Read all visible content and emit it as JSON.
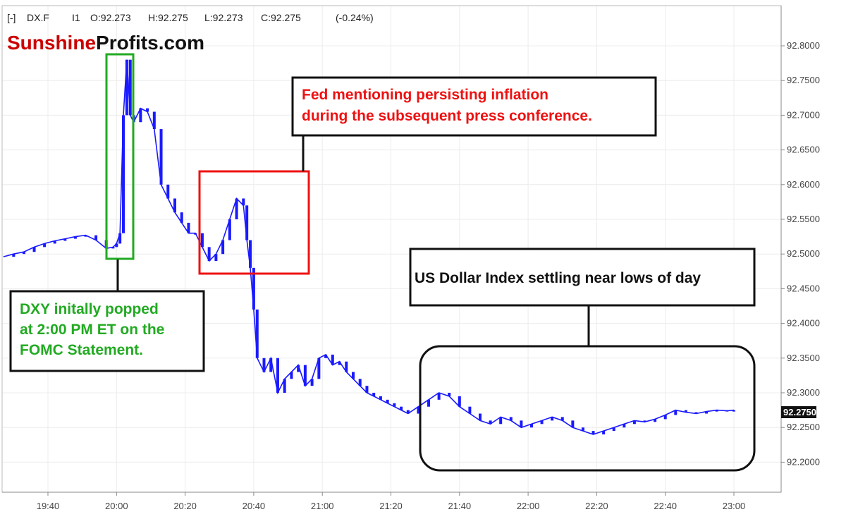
{
  "header": {
    "toggle": "[-]",
    "symbol": "DX.F",
    "interval": "I1",
    "open": "O:92.273",
    "high": "H:92.275",
    "low": "L:92.273",
    "close": "C:92.275",
    "change": "(-0.24%)"
  },
  "logo": {
    "part1": "Sunshine",
    "part2": "Profits.com",
    "color1": "#cc0000",
    "color2": "#111111"
  },
  "last_price_label": "92.2750",
  "annotations": {
    "green": {
      "lines": [
        "DXY initally popped",
        "at 2:00 PM ET on the",
        "FOMC Statement."
      ],
      "color": "#22aa22"
    },
    "red": {
      "lines": [
        "Fed mentioning persisting inflation",
        "during the subsequent press conference."
      ],
      "color": "#ee1111"
    },
    "black": {
      "lines": [
        "US Dollar Index settling near lows of day"
      ],
      "color": "#111111"
    }
  },
  "colors": {
    "candle": "#1a1aff",
    "green_box": "#22aa22",
    "red_box": "#ee1111",
    "grid": "#e6e6e6"
  },
  "chart_data": {
    "type": "line",
    "title": "",
    "xlabel": "",
    "ylabel": "",
    "ylim": [
      92.16,
      92.84
    ],
    "x_ticks": [
      "19:40",
      "20:00",
      "20:20",
      "20:40",
      "21:00",
      "21:20",
      "21:40",
      "22:00",
      "22:20",
      "22:40",
      "23:00"
    ],
    "y_ticks": [
      "92.2000",
      "92.2500",
      "92.3000",
      "92.3500",
      "92.4000",
      "92.4500",
      "92.5000",
      "92.5500",
      "92.6000",
      "92.6500",
      "92.7000",
      "92.7500",
      "92.8000"
    ],
    "grid": true,
    "series": [
      {
        "x": [
          "19:27",
          "19:30",
          "19:33",
          "19:36",
          "19:39",
          "19:42",
          "19:45",
          "19:48",
          "19:51",
          "19:54",
          "19:57",
          "19:59",
          "20:00",
          "20:01",
          "20:02",
          "20:03",
          "20:04",
          "20:05",
          "20:07",
          "20:09",
          "20:11",
          "20:13",
          "20:15",
          "20:17",
          "20:19",
          "20:21",
          "20:23",
          "20:25",
          "20:27",
          "20:29",
          "20:31",
          "20:33",
          "20:35",
          "20:37",
          "20:38",
          "20:39",
          "20:40",
          "20:41",
          "20:43",
          "20:45",
          "20:47",
          "20:49",
          "20:51",
          "20:53",
          "20:55",
          "20:57",
          "20:59",
          "21:01",
          "21:03",
          "21:05",
          "21:07",
          "21:09",
          "21:11",
          "21:13",
          "21:15",
          "21:17",
          "21:19",
          "21:21",
          "21:23",
          "21:25",
          "21:28",
          "21:31",
          "21:34",
          "21:37",
          "21:40",
          "21:43",
          "21:46",
          "21:49",
          "21:52",
          "21:55",
          "21:58",
          "22:01",
          "22:04",
          "22:07",
          "22:10",
          "22:13",
          "22:16",
          "22:19",
          "22:22",
          "22:25",
          "22:28",
          "22:31",
          "22:34",
          "22:37",
          "22:40",
          "22:43",
          "22:46",
          "22:49",
          "22:52",
          "22:55",
          "22:58",
          "23:00"
        ],
        "values": [
          92.496,
          92.5,
          92.503,
          92.51,
          92.515,
          92.519,
          92.522,
          92.525,
          92.527,
          92.52,
          92.508,
          92.51,
          92.515,
          92.53,
          92.7,
          92.78,
          92.7,
          92.69,
          92.71,
          92.705,
          92.68,
          92.6,
          92.58,
          92.56,
          92.545,
          92.53,
          92.53,
          92.51,
          92.49,
          92.5,
          92.52,
          92.55,
          92.58,
          92.57,
          92.52,
          92.48,
          92.42,
          92.35,
          92.33,
          92.35,
          92.3,
          92.32,
          92.33,
          92.34,
          92.31,
          92.32,
          92.35,
          92.355,
          92.34,
          92.345,
          92.33,
          92.32,
          92.31,
          92.3,
          92.295,
          92.29,
          92.285,
          92.28,
          92.275,
          92.27,
          92.28,
          92.29,
          92.3,
          92.295,
          92.28,
          92.27,
          92.26,
          92.255,
          92.265,
          92.26,
          92.25,
          92.255,
          92.26,
          92.265,
          92.26,
          92.25,
          92.245,
          92.24,
          92.245,
          92.25,
          92.255,
          92.26,
          92.258,
          92.262,
          92.268,
          92.275,
          92.272,
          92.27,
          92.273,
          92.275,
          92.274,
          92.275
        ]
      }
    ]
  }
}
